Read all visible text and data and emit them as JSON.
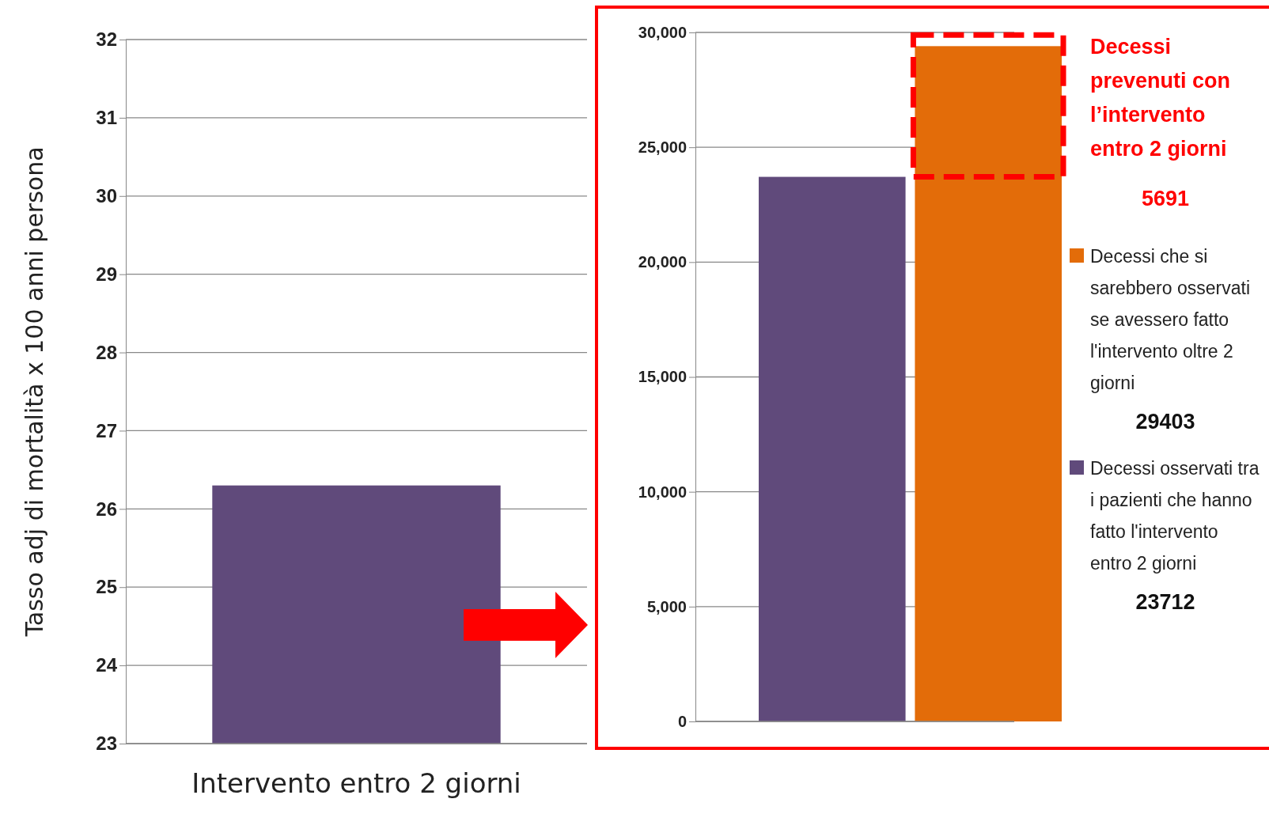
{
  "chart_data": [
    {
      "type": "bar",
      "ylabel": "Tasso adj di mortalità x 100 anni persona",
      "categories": [
        "Intervento entro 2 giorni"
      ],
      "values": [
        26.3
      ],
      "color": "#604a7b",
      "ylim": [
        23,
        32
      ],
      "yticks": [
        23,
        24,
        25,
        26,
        27,
        28,
        29,
        30,
        31,
        32
      ],
      "grid": "y"
    },
    {
      "type": "bar",
      "categories": [
        null,
        null
      ],
      "series": [
        {
          "name": "Decessi che si sarebbero osservati se avessero fatto l'intervento oltre 2 giorni",
          "color": "#e36c09",
          "values": [
            null,
            29403
          ]
        },
        {
          "name": "Decessi osservati tra i pazienti che hanno fatto l'intervento entro  2 giorni",
          "color": "#604a7b",
          "values": [
            23712,
            null
          ]
        }
      ],
      "ylim": [
        0,
        30000
      ],
      "yticks": [
        0,
        {
          "value": 5000,
          "label": "5,000"
        },
        {
          "value": 10000,
          "label": "10,000"
        },
        {
          "value": 15000,
          "label": "15,000"
        },
        {
          "value": 20000,
          "label": "20,000"
        },
        {
          "value": 25000,
          "label": "25,000"
        },
        {
          "value": 30000,
          "label": "30,000"
        }
      ],
      "grid": "y",
      "legend": "right",
      "annotations": [
        "Decessi prevenuti con l’intervento entro 2 giorni",
        "5691",
        "29403",
        "23712"
      ]
    }
  ]
}
